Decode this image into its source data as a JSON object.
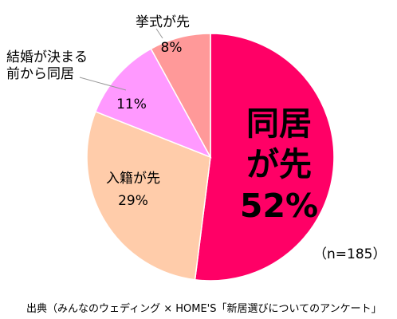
{
  "chart_data": {
    "type": "pie",
    "title": "",
    "slices": [
      {
        "label": "同居が先",
        "value": 52,
        "display": "52%",
        "color": "#FF0066"
      },
      {
        "label": "入籍が先",
        "value": 29,
        "display": "29%",
        "color": "#FFCCAA"
      },
      {
        "label": "結婚が決まる前から同居",
        "value": 11,
        "display": "11%",
        "color": "#FF99FF"
      },
      {
        "label": "挙式が先",
        "value": 8,
        "display": "8%",
        "color": "#FF9999"
      }
    ],
    "labels": {
      "doukyo_line1": "同居",
      "doukyo_line2": "が先",
      "doukyo_pct": "52%",
      "nyuseki_name": "入籍が先",
      "nyuseki_pct": "29%",
      "mae_line1": "結婚が決まる",
      "mae_line2": "前から同居",
      "mae_pct": "11%",
      "kyoshiki_name": "挙式が先",
      "kyoshiki_pct": "8%"
    },
    "n_note": "（n=185）",
    "source": "出典（みんなのウェディング × HOME'S「新居選びについてのアンケート」"
  }
}
